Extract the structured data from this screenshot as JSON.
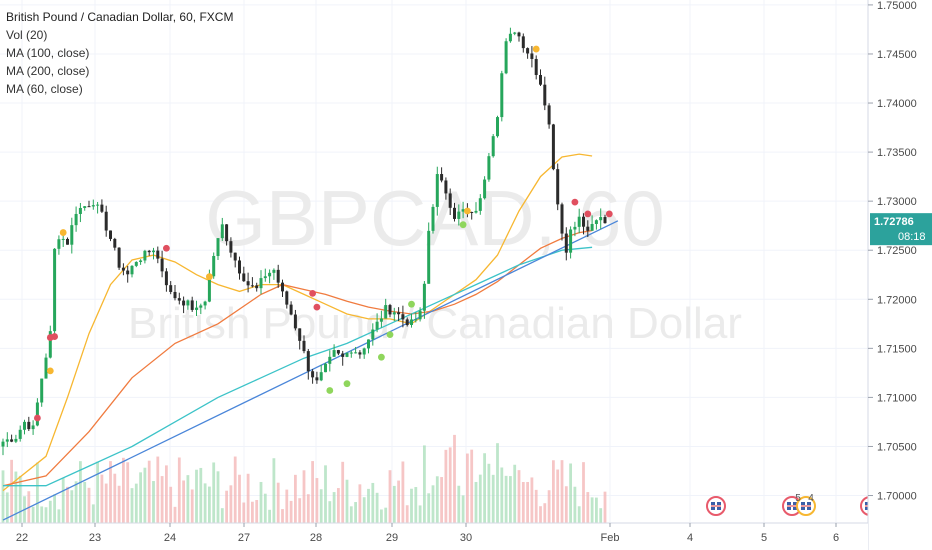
{
  "legend": {
    "title": "British Pound / Canadian Dollar, 60, FXCM",
    "indicators": [
      "Vol (20)",
      "MA (100, close)",
      "MA (200, close)",
      "MA (60, close)"
    ]
  },
  "watermark": {
    "symbol": "GBPCAD, 60",
    "name": "British Pound / Canadian Dollar"
  },
  "chart_data": {
    "type": "candlestick",
    "title": "British Pound / Canadian Dollar, 60, FXCM",
    "interval": "60",
    "source": "FXCM",
    "x_ticks": [
      "22",
      "23",
      "24",
      "27",
      "28",
      "29",
      "30",
      "Feb",
      "4",
      "5",
      "6"
    ],
    "y_ticks": [
      "1.75000",
      "1.74500",
      "1.74000",
      "1.73500",
      "1.73000",
      "1.72500",
      "1.72000",
      "1.71500",
      "1.71000",
      "1.70500",
      "1.70000"
    ],
    "ylim": [
      1.6972,
      1.7505
    ],
    "last_price": "1.72786",
    "countdown": "08:18",
    "keypoints": [
      [
        0,
        1.7055
      ],
      [
        3,
        1.706
      ],
      [
        5,
        1.7075
      ],
      [
        7,
        1.7068
      ],
      [
        9,
        1.712
      ],
      [
        11,
        1.7165
      ],
      [
        12,
        1.725
      ],
      [
        13,
        1.7265
      ],
      [
        15,
        1.7258
      ],
      [
        17,
        1.729
      ],
      [
        19,
        1.7295
      ],
      [
        21,
        1.73
      ],
      [
        23,
        1.7285
      ],
      [
        25,
        1.7262
      ],
      [
        27,
        1.7235
      ],
      [
        29,
        1.7225
      ],
      [
        31,
        1.724
      ],
      [
        33,
        1.7245
      ],
      [
        35,
        1.7252
      ],
      [
        37,
        1.723
      ],
      [
        39,
        1.7205
      ],
      [
        41,
        1.72
      ],
      [
        43,
        1.7195
      ],
      [
        45,
        1.7188
      ],
      [
        47,
        1.72
      ],
      [
        49,
        1.7245
      ],
      [
        51,
        1.7275
      ],
      [
        53,
        1.725
      ],
      [
        55,
        1.723
      ],
      [
        57,
        1.7215
      ],
      [
        59,
        1.721
      ],
      [
        61,
        1.7225
      ],
      [
        63,
        1.723
      ],
      [
        65,
        1.7205
      ],
      [
        67,
        1.7185
      ],
      [
        69,
        1.716
      ],
      [
        71,
        1.713
      ],
      [
        73,
        1.7115
      ],
      [
        75,
        1.713
      ],
      [
        77,
        1.7145
      ],
      [
        79,
        1.714
      ],
      [
        81,
        1.715
      ],
      [
        83,
        1.7145
      ],
      [
        85,
        1.716
      ],
      [
        87,
        1.7175
      ],
      [
        89,
        1.719
      ],
      [
        91,
        1.7188
      ],
      [
        93,
        1.718
      ],
      [
        95,
        1.7175
      ],
      [
        97,
        1.7185
      ],
      [
        98,
        1.7215
      ],
      [
        99,
        1.727
      ],
      [
        101,
        1.7325
      ],
      [
        103,
        1.731
      ],
      [
        105,
        1.7285
      ],
      [
        107,
        1.729
      ],
      [
        109,
        1.7285
      ],
      [
        111,
        1.73
      ],
      [
        113,
        1.735
      ],
      [
        115,
        1.739
      ],
      [
        116,
        1.743
      ],
      [
        117,
        1.746
      ],
      [
        119,
        1.7475
      ],
      [
        120,
        1.7468
      ],
      [
        121,
        1.746
      ],
      [
        123,
        1.7445
      ],
      [
        125,
        1.742
      ],
      [
        127,
        1.738
      ],
      [
        128,
        1.733
      ],
      [
        129,
        1.73
      ],
      [
        130,
        1.727
      ],
      [
        131,
        1.7252
      ],
      [
        132,
        1.727
      ],
      [
        134,
        1.7285
      ],
      [
        136,
        1.727
      ],
      [
        138,
        1.7285
      ],
      [
        140,
        1.7278
      ]
    ],
    "candle_count": 141,
    "moving_averages": [
      {
        "name": "MA (60, close)",
        "color": "#f7b731",
        "points": [
          [
            0,
            1.7005
          ],
          [
            10,
            1.704
          ],
          [
            15,
            1.71
          ],
          [
            20,
            1.7165
          ],
          [
            25,
            1.7215
          ],
          [
            30,
            1.724
          ],
          [
            35,
            1.7245
          ],
          [
            40,
            1.7238
          ],
          [
            45,
            1.7225
          ],
          [
            50,
            1.7215
          ],
          [
            55,
            1.7208
          ],
          [
            60,
            1.7215
          ],
          [
            65,
            1.7215
          ],
          [
            70,
            1.7205
          ],
          [
            75,
            1.7195
          ],
          [
            80,
            1.7185
          ],
          [
            85,
            1.718
          ],
          [
            90,
            1.718
          ],
          [
            95,
            1.7175
          ],
          [
            100,
            1.719
          ],
          [
            105,
            1.7205
          ],
          [
            110,
            1.722
          ],
          [
            115,
            1.7245
          ],
          [
            120,
            1.729
          ],
          [
            125,
            1.7325
          ],
          [
            130,
            1.7345
          ],
          [
            134,
            1.7348
          ],
          [
            137,
            1.7346
          ]
        ]
      },
      {
        "name": "MA (100, close)",
        "color": "#f07b3f",
        "points": [
          [
            0,
            1.701
          ],
          [
            10,
            1.702
          ],
          [
            20,
            1.7065
          ],
          [
            30,
            1.712
          ],
          [
            40,
            1.7155
          ],
          [
            50,
            1.7175
          ],
          [
            60,
            1.7205
          ],
          [
            65,
            1.7215
          ],
          [
            70,
            1.721
          ],
          [
            75,
            1.7205
          ],
          [
            80,
            1.7198
          ],
          [
            85,
            1.7192
          ],
          [
            90,
            1.7188
          ],
          [
            95,
            1.7185
          ],
          [
            100,
            1.7188
          ],
          [
            105,
            1.7195
          ],
          [
            110,
            1.7205
          ],
          [
            115,
            1.7218
          ],
          [
            120,
            1.7235
          ],
          [
            125,
            1.7252
          ],
          [
            130,
            1.7262
          ],
          [
            134,
            1.7268
          ],
          [
            137,
            1.727
          ]
        ]
      },
      {
        "name": "MA (200, close)",
        "color": "#3cc3c8",
        "points": [
          [
            0,
            1.701
          ],
          [
            10,
            1.701
          ],
          [
            20,
            1.703
          ],
          [
            30,
            1.705
          ],
          [
            40,
            1.7075
          ],
          [
            50,
            1.71
          ],
          [
            60,
            1.712
          ],
          [
            70,
            1.714
          ],
          [
            80,
            1.7155
          ],
          [
            90,
            1.7175
          ],
          [
            100,
            1.7195
          ],
          [
            110,
            1.7215
          ],
          [
            120,
            1.7235
          ],
          [
            130,
            1.725
          ],
          [
            137,
            1.7253
          ]
        ]
      }
    ],
    "trendline": {
      "color": "#4a86d9",
      "from": [
        0,
        1.6975
      ],
      "to": [
        143,
        1.728
      ]
    },
    "markers": [
      {
        "i": 8,
        "v": 1.7079,
        "color": "#e04f5f"
      },
      {
        "i": 11,
        "v": 1.7161,
        "color": "#e04f5f"
      },
      {
        "i": 12,
        "v": 1.7162,
        "color": "#e04f5f"
      },
      {
        "i": 11,
        "v": 1.7127,
        "color": "#f7b731"
      },
      {
        "i": 14,
        "v": 1.7268,
        "color": "#f7b731"
      },
      {
        "i": 38,
        "v": 1.7252,
        "color": "#e04f5f"
      },
      {
        "i": 48,
        "v": 1.7223,
        "color": "#f7b731"
      },
      {
        "i": 72,
        "v": 1.7206,
        "color": "#e04f5f"
      },
      {
        "i": 73,
        "v": 1.7192,
        "color": "#e04f5f"
      },
      {
        "i": 76,
        "v": 1.7107,
        "color": "#8fd65c"
      },
      {
        "i": 80,
        "v": 1.7114,
        "color": "#8fd65c"
      },
      {
        "i": 88,
        "v": 1.7141,
        "color": "#8fd65c"
      },
      {
        "i": 90,
        "v": 1.7164,
        "color": "#8fd65c"
      },
      {
        "i": 95,
        "v": 1.7195,
        "color": "#8fd65c"
      },
      {
        "i": 108,
        "v": 1.729,
        "color": "#f7b731"
      },
      {
        "i": 107,
        "v": 1.7276,
        "color": "#8fd65c"
      },
      {
        "i": 124,
        "v": 1.7455,
        "color": "#f7b731"
      },
      {
        "i": 133,
        "v": 1.7299,
        "color": "#e04f5f"
      },
      {
        "i": 136,
        "v": 1.7287,
        "color": "#e04f5f"
      },
      {
        "i": 141,
        "v": 1.7287,
        "color": "#e04f5f"
      }
    ],
    "event_icons": [
      {
        "x_label_pos": 4.3,
        "text": ""
      },
      {
        "x_label_pos": 5.45,
        "text": "5"
      },
      {
        "x_label_pos": 5.55,
        "text": "4"
      },
      {
        "x_label_pos": 6.45,
        "text": ""
      }
    ],
    "colors": {
      "up": "#26a65b",
      "down": "#2b2b2b",
      "volume_up": "#a8ddb8",
      "volume_down": "#f3b3b3",
      "price_label_bg": "#2ca29c",
      "axis_bg": "#ffffff"
    }
  }
}
